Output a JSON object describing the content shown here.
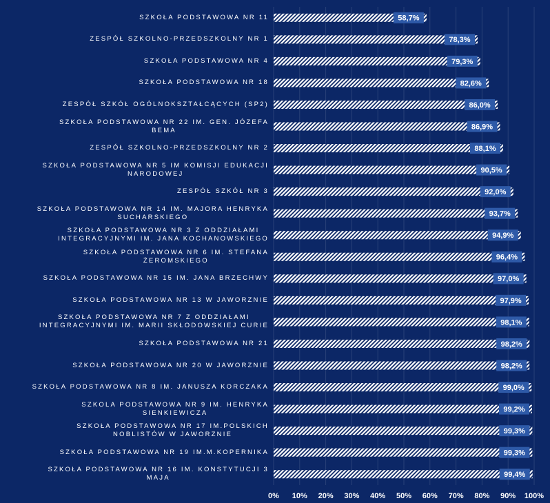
{
  "chart_data": {
    "type": "bar",
    "orientation": "horizontal",
    "categories": [
      "SZKOŁA PODSTAWOWA NR 11",
      "ZESPÓŁ SZKOLNO-PRZEDSZKOLNY NR 1",
      "SZKOŁA PODSTAWOWA NR 4",
      "SZKOŁA PODSTAWOWA NR 18",
      "ZESPÓŁ SZKÓŁ OGÓLNOKSZTAŁCĄCYCH (SP2)",
      "SZKOŁA PODSTAWOWA NR 22 IM. GEN. JÓZEFA\nBEMA",
      "ZESPÓŁ SZKOLNO-PRZEDSZKOLNY NR 2",
      "SZKOŁA PODSTAWOWA NR 5 IM KOMISJI EDUKACJI\nNARODOWEJ",
      "ZESPÓŁ SZKÓŁ NR 3",
      "SZKOŁA PODSTAWOWA NR 14 IM. MAJORA HENRYKA\nSUCHARSKIEGO",
      "SZKOŁA PODSTAWOWA NR 3 Z ODDZIAŁAMI\nINTEGRACYJNYMI IM. JANA KOCHANOWSKIEGO",
      "SZKOŁA PODSTAWOWA NR 6 IM. STEFANA\nŻEROMSKIEGO",
      "SZKOŁA PODSTAWOWA NR 15 IM. JANA BRZECHWY",
      "SZKOŁA PODSTAWOWA NR 13 W JAWORZNIE",
      "SZKOŁA PODSTAWOWA NR 7 Z ODDZIAŁAMI\nINTEGRACYJNYMI IM. MARII SKŁODOWSKIEJ CURIE",
      "SZKOŁA PODSTAWOWA NR 21",
      "SZKOŁA PODSTAWOWA NR 20 W JAWORZNIE",
      "SZKOŁA PODSTAWOWA NR 8 IM. JANUSZA KORCZAKA",
      "SZKOLA PODSTAWOWA NR 9 IM. HENRYKA\nSIENKIEWICZA",
      "SZKOŁA PODSTAWOWA NR 17 IM.POLSKICH\nNOBLISTÓW W JAWORZNIE",
      "SZKOŁA PODSTAWOWA NR 19 IM.M.KOPERNIKA",
      "SZKOŁA PODSTAWOWA NR 16 IM. KONSTYTUCJI 3\nMAJA"
    ],
    "values": [
      58.7,
      78.3,
      79.3,
      82.6,
      86.0,
      86.9,
      88.1,
      90.5,
      92.0,
      93.7,
      94.9,
      96.4,
      97.0,
      97.9,
      98.1,
      98.2,
      98.2,
      99.0,
      99.2,
      99.3,
      99.3,
      99.4
    ],
    "value_labels": [
      "58,7%",
      "78,3%",
      "79,3%",
      "82,6%",
      "86,0%",
      "86,9%",
      "88,1%",
      "90,5%",
      "92,0%",
      "93,7%",
      "94,9%",
      "96,4%",
      "97,0%",
      "97,9%",
      "98,1%",
      "98,2%",
      "98,2%",
      "99,0%",
      "99,2%",
      "99,3%",
      "99,3%",
      "99,4%"
    ],
    "color": "#ffffff",
    "label_color": "#2e5aa8",
    "xlim": [
      0,
      100
    ],
    "xticks": [
      {
        "value": 0,
        "label": "0%"
      },
      {
        "value": 10,
        "label": "10%"
      },
      {
        "value": 20,
        "label": "20%"
      },
      {
        "value": 30,
        "label": "30%"
      },
      {
        "value": 40,
        "label": "40%"
      },
      {
        "value": 50,
        "label": "50%"
      },
      {
        "value": 60,
        "label": "60%"
      },
      {
        "value": 70,
        "label": "70%"
      },
      {
        "value": 80,
        "label": "80%"
      },
      {
        "value": 90,
        "label": "90%"
      },
      {
        "value": 100,
        "label": "100%"
      }
    ],
    "grid": true
  }
}
